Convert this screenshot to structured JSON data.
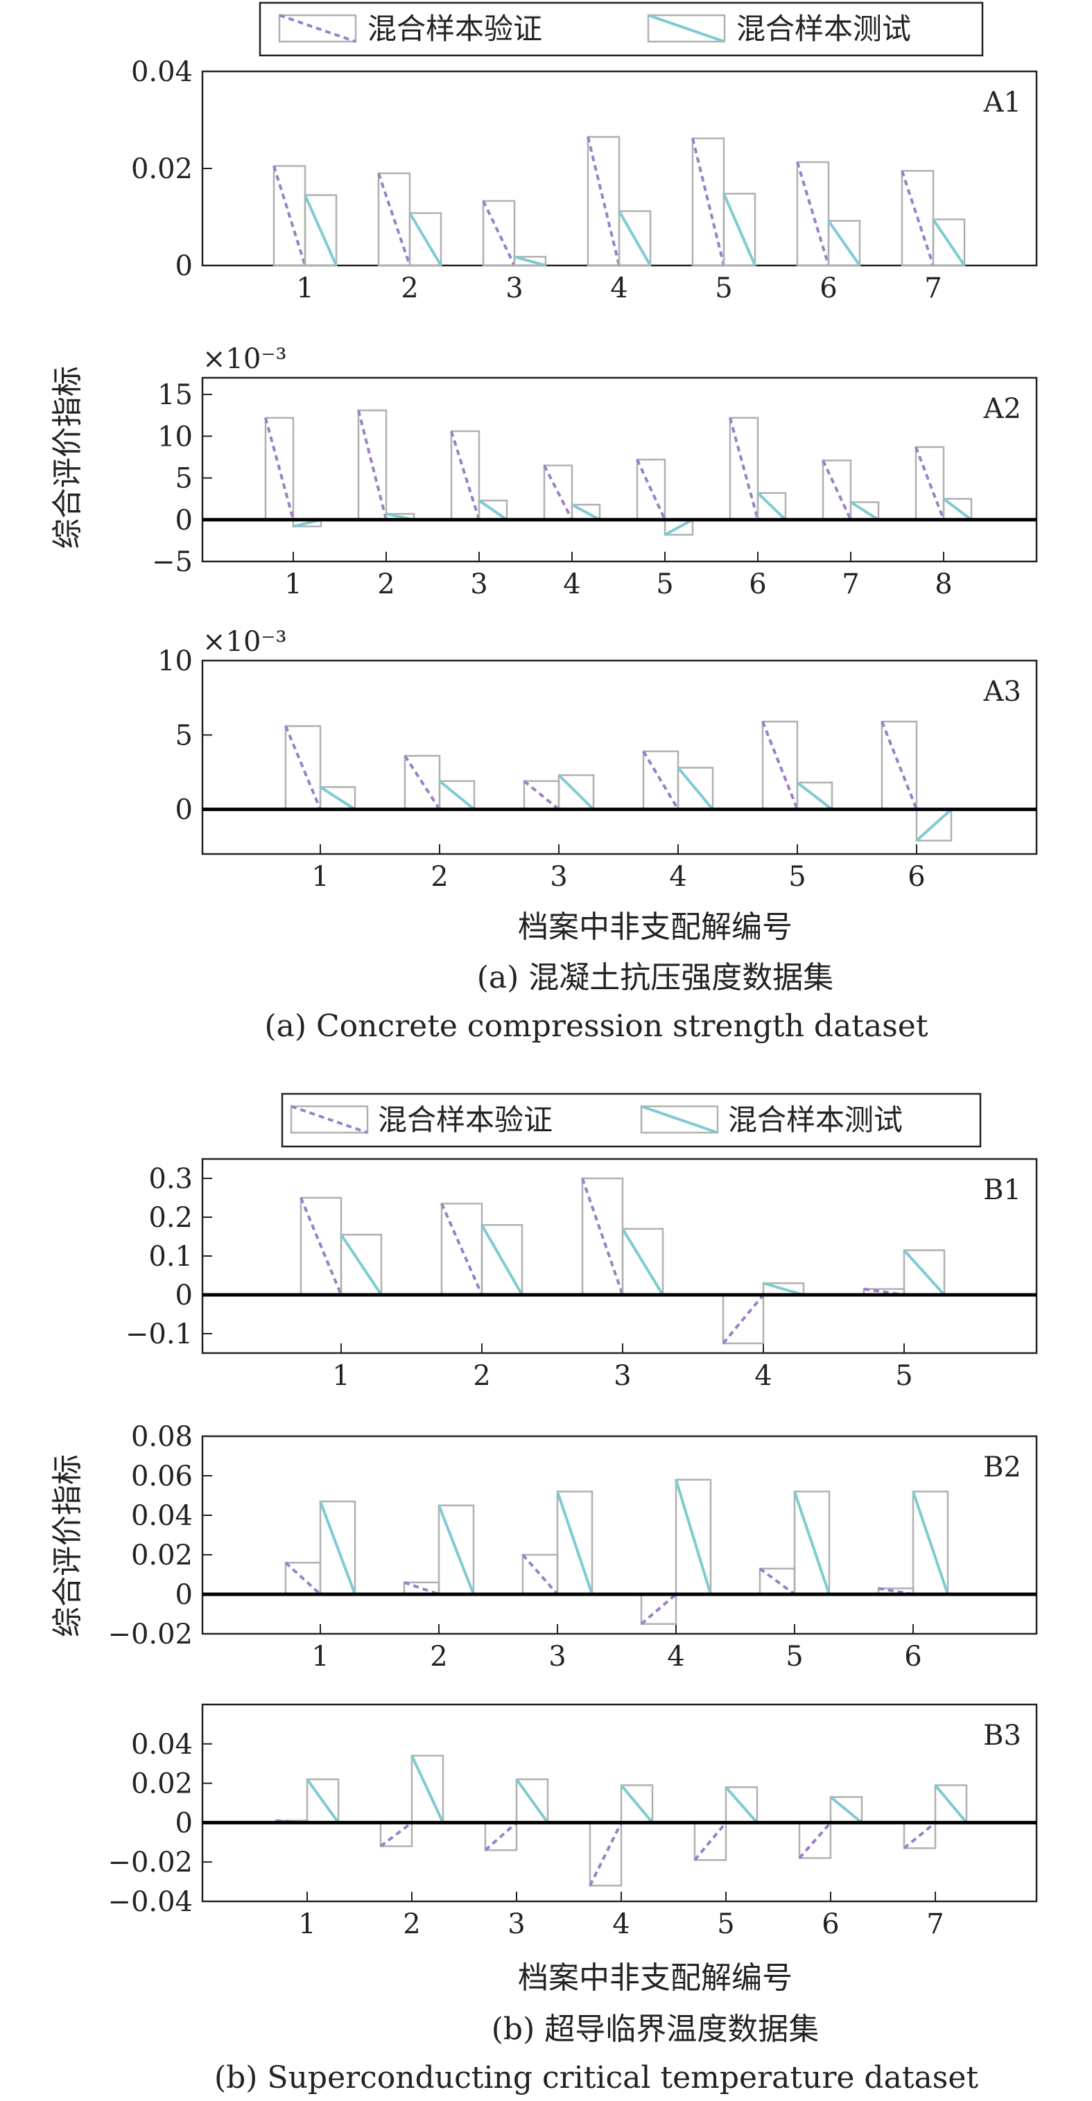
{
  "figure_a": {
    "legend": [
      "混合样本验证",
      "混合样本测试"
    ],
    "ylabel": "综合评价指标",
    "xlabel": "档案中非支配解编号",
    "caption_cn": "(a) 混凝土抗压强度数据集",
    "caption_en": "(a) Concrete compression strength dataset"
  },
  "figure_b": {
    "legend": [
      "混合样本验证",
      "混合样本测试"
    ],
    "ylabel": "综合评价指标",
    "xlabel": "档案中非支配解编号",
    "caption_cn": "(b) 超导临界温度数据集",
    "caption_en": "(b) Superconducting critical temperature dataset"
  },
  "colors": {
    "validation_line": "#9b7fc9",
    "test_line": "#7ecbd1",
    "bar_edge": "#b0b0b0",
    "zero_line": "#000000"
  },
  "chart_data": [
    {
      "type": "bar",
      "label": "A1",
      "categories": [
        "1",
        "2",
        "3",
        "4",
        "5",
        "6",
        "7"
      ],
      "series": [
        {
          "name": "混合样本验证",
          "values": [
            0.0205,
            0.019,
            0.0133,
            0.0265,
            0.0262,
            0.0213,
            0.0195
          ]
        },
        {
          "name": "混合样本测试",
          "values": [
            0.0145,
            0.0108,
            0.0018,
            0.0112,
            0.0148,
            0.0092,
            0.0095
          ]
        }
      ],
      "ylim": [
        0,
        0.04
      ],
      "yticks": [
        "0",
        "0.02",
        "0.04"
      ],
      "multiplier": ""
    },
    {
      "type": "bar",
      "label": "A2",
      "categories": [
        "1",
        "2",
        "3",
        "4",
        "5",
        "6",
        "7",
        "8"
      ],
      "series": [
        {
          "name": "混合样本验证",
          "values": [
            12.2,
            13.1,
            10.6,
            6.5,
            7.2,
            12.2,
            7.1,
            8.7
          ]
        },
        {
          "name": "混合样本测试",
          "values": [
            -0.8,
            0.7,
            2.3,
            1.8,
            -1.8,
            3.2,
            2.1,
            2.5
          ]
        }
      ],
      "ylim": [
        -5,
        17
      ],
      "yticks": [
        "−5",
        "0",
        "5",
        "10",
        "15"
      ],
      "multiplier": "×10⁻³"
    },
    {
      "type": "bar",
      "label": "A3",
      "categories": [
        "1",
        "2",
        "3",
        "4",
        "5",
        "6"
      ],
      "series": [
        {
          "name": "混合样本验证",
          "values": [
            5.6,
            3.6,
            1.9,
            3.9,
            5.9,
            5.9
          ]
        },
        {
          "name": "混合样本测试",
          "values": [
            1.5,
            1.9,
            2.3,
            2.8,
            1.8,
            -2.1
          ]
        }
      ],
      "ylim": [
        -3,
        10
      ],
      "yticks": [
        "0",
        "5",
        "10"
      ],
      "multiplier": "×10⁻³"
    },
    {
      "type": "bar",
      "label": "B1",
      "categories": [
        "1",
        "2",
        "3",
        "4",
        "5"
      ],
      "series": [
        {
          "name": "混合样本验证",
          "values": [
            0.25,
            0.235,
            0.3,
            -0.125,
            0.015
          ]
        },
        {
          "name": "混合样本测试",
          "values": [
            0.155,
            0.18,
            0.17,
            0.03,
            0.115
          ]
        }
      ],
      "ylim": [
        -0.15,
        0.35
      ],
      "yticks": [
        "−0.1",
        "0",
        "0.1",
        "0.2",
        "0.3"
      ],
      "multiplier": ""
    },
    {
      "type": "bar",
      "label": "B2",
      "categories": [
        "1",
        "2",
        "3",
        "4",
        "5",
        "6"
      ],
      "series": [
        {
          "name": "混合样本验证",
          "values": [
            0.016,
            0.006,
            0.02,
            -0.015,
            0.013,
            0.003
          ]
        },
        {
          "name": "混合样本测试",
          "values": [
            0.047,
            0.045,
            0.052,
            0.058,
            0.052,
            0.052
          ]
        }
      ],
      "ylim": [
        -0.02,
        0.08
      ],
      "yticks": [
        "−0.02",
        "0",
        "0.02",
        "0.04",
        "0.06",
        "0.08"
      ],
      "multiplier": ""
    },
    {
      "type": "bar",
      "label": "B3",
      "categories": [
        "1",
        "2",
        "3",
        "4",
        "5",
        "6",
        "7"
      ],
      "series": [
        {
          "name": "混合样本验证",
          "values": [
            0.001,
            -0.012,
            -0.014,
            -0.032,
            -0.019,
            -0.018,
            -0.013
          ]
        },
        {
          "name": "混合样本测试",
          "values": [
            0.022,
            0.034,
            0.022,
            0.019,
            0.018,
            0.013,
            0.019
          ]
        }
      ],
      "ylim": [
        -0.04,
        0.06
      ],
      "yticks": [
        "−0.04",
        "−0.02",
        "0",
        "0.02",
        "0.04"
      ],
      "multiplier": ""
    }
  ]
}
